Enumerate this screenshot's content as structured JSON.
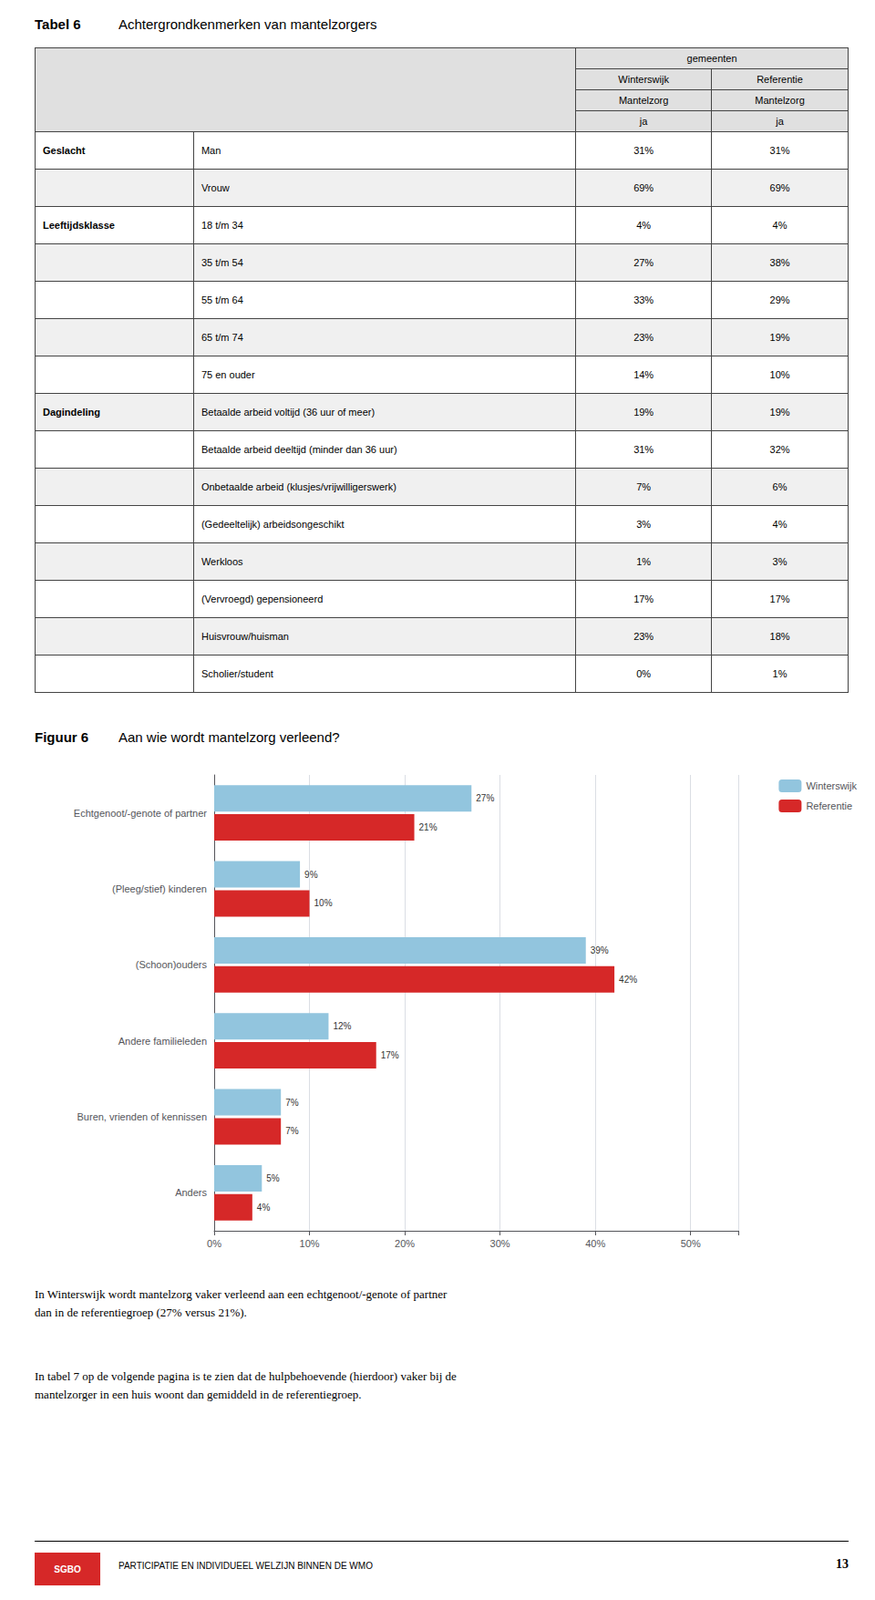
{
  "chart_data": [
    {
      "type": "table",
      "title": "Tabel 6",
      "subtitle": "Achtergrondkenmerken van mantelzorgers",
      "header_rows": [
        [
          "gemeenten"
        ],
        [
          "Winterswijk",
          "Referentie"
        ],
        [
          "Mantelzorg",
          "Mantelzorg"
        ],
        [
          "ja",
          "ja"
        ]
      ],
      "sections": [
        {
          "name": "Geslacht",
          "rows": [
            {
              "label": "Man",
              "values": [
                "31%",
                "31%"
              ]
            },
            {
              "label": "Vrouw",
              "values": [
                "69%",
                "69%"
              ]
            }
          ]
        },
        {
          "name": "Leeftijdsklasse",
          "rows": [
            {
              "label": "18 t/m 34",
              "values": [
                "4%",
                "4%"
              ]
            },
            {
              "label": "35 t/m 54",
              "values": [
                "27%",
                "38%"
              ]
            },
            {
              "label": "55 t/m 64",
              "values": [
                "33%",
                "29%"
              ]
            },
            {
              "label": "65 t/m 74",
              "values": [
                "23%",
                "19%"
              ]
            },
            {
              "label": "75 en ouder",
              "values": [
                "14%",
                "10%"
              ]
            }
          ]
        },
        {
          "name": "Dagindeling",
          "rows": [
            {
              "label": "Betaalde arbeid voltijd (36 uur of meer)",
              "values": [
                "19%",
                "19%"
              ]
            },
            {
              "label": "Betaalde arbeid deeltijd (minder dan 36 uur)",
              "values": [
                "31%",
                "32%"
              ]
            },
            {
              "label": "Onbetaalde arbeid (klusjes/vrijwilligerswerk)",
              "values": [
                "7%",
                "6%"
              ]
            },
            {
              "label": "(Gedeeltelijk) arbeidsongeschikt",
              "values": [
                "3%",
                "4%"
              ]
            },
            {
              "label": "Werkloos",
              "values": [
                "1%",
                "3%"
              ]
            },
            {
              "label": "(Vervroegd) gepensioneerd",
              "values": [
                "17%",
                "17%"
              ]
            },
            {
              "label": "Huisvrouw/huisman",
              "values": [
                "23%",
                "18%"
              ]
            },
            {
              "label": "Scholier/student",
              "values": [
                "0%",
                "1%"
              ]
            }
          ]
        }
      ]
    },
    {
      "type": "bar",
      "orientation": "horizontal",
      "title": "Figuur 6",
      "subtitle": "Aan wie wordt mantelzorg verleend?",
      "categories": [
        "Echtgenoot/-genote of partner",
        "(Pleeg/stief) kinderen",
        "(Schoon)ouders",
        "Andere familieleden",
        "Buren, vrienden of kennissen",
        "Anders"
      ],
      "series": [
        {
          "name": "Winterswijk",
          "color": "#92C5DE",
          "values": [
            27,
            9,
            39,
            12,
            7,
            5
          ],
          "value_labels": [
            "27%",
            "9%",
            "39%",
            "12%",
            "7%",
            "5%"
          ]
        },
        {
          "name": "Referentie",
          "color": "#D62828",
          "values": [
            21,
            10,
            42,
            17,
            7,
            4
          ],
          "value_labels": [
            "21%",
            "10%",
            "42%",
            "17%",
            "7%",
            "4%"
          ]
        }
      ],
      "xlim": [
        0,
        55
      ],
      "xticks": [
        {
          "value": 0,
          "label": "0%"
        },
        {
          "value": 10,
          "label": "10%"
        },
        {
          "value": 20,
          "label": "20%"
        },
        {
          "value": 30,
          "label": "30%"
        },
        {
          "value": 40,
          "label": "40%"
        },
        {
          "value": 50,
          "label": "50%"
        }
      ],
      "grid": true,
      "legend": "upper right",
      "data_labels": true
    }
  ],
  "annotations": [
    "In Winterswijk wordt mantelzorg vaker verleend aan een echtgenoot/-genote of partner\ndan in de referentiegroep (27% versus 21%).",
    "In tabel 7 op de volgende pagina is te zien dat de hulpbehoevende (hierdoor) vaker bij de\nmantelzorger in een huis woont dan gemiddeld in de referentiegroep.",
    "SGBO",
    "PARTICIPATIE EN INDIVIDUEEL WELZIJN BINNEN DE WMO",
    "13"
  ]
}
